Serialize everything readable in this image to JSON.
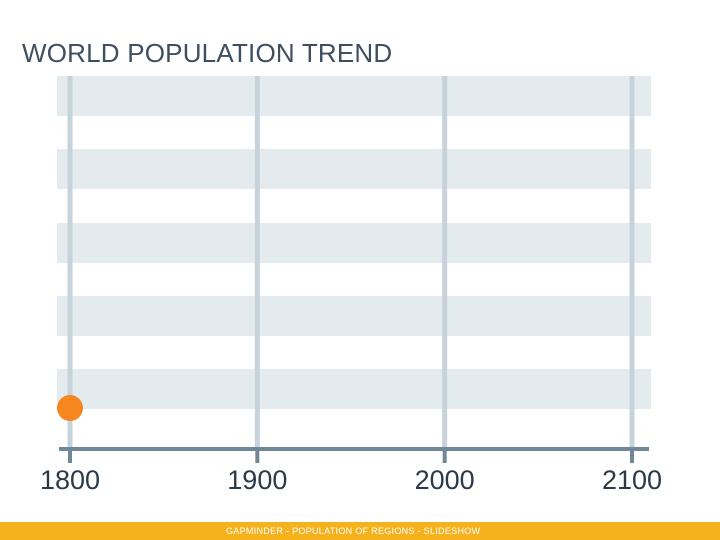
{
  "slide": {
    "title": "WORLD POPULATION TREND",
    "footer": "GAPMINDER - POPULATION OF REGIONS - SLIDESHOW"
  },
  "colors": {
    "band": "#e4ebef",
    "gridline": "#c6d3da",
    "axis": "#6f8797",
    "marker": "#f6861f",
    "footer": "#f5b21c"
  },
  "chart_data": {
    "type": "scatter",
    "title": "WORLD POPULATION TREND",
    "xlabel": "",
    "ylabel": "",
    "xlim": [
      1800,
      2100
    ],
    "x_ticks": [
      1800,
      1900,
      2000,
      2100
    ],
    "x_tick_labels": [
      "1800",
      "1900",
      "2000",
      "2100"
    ],
    "y_ticks_shown": false,
    "grid": true,
    "legend": "none",
    "series": [
      {
        "points": [
          {
            "x": 1800
          }
        ]
      }
    ]
  }
}
